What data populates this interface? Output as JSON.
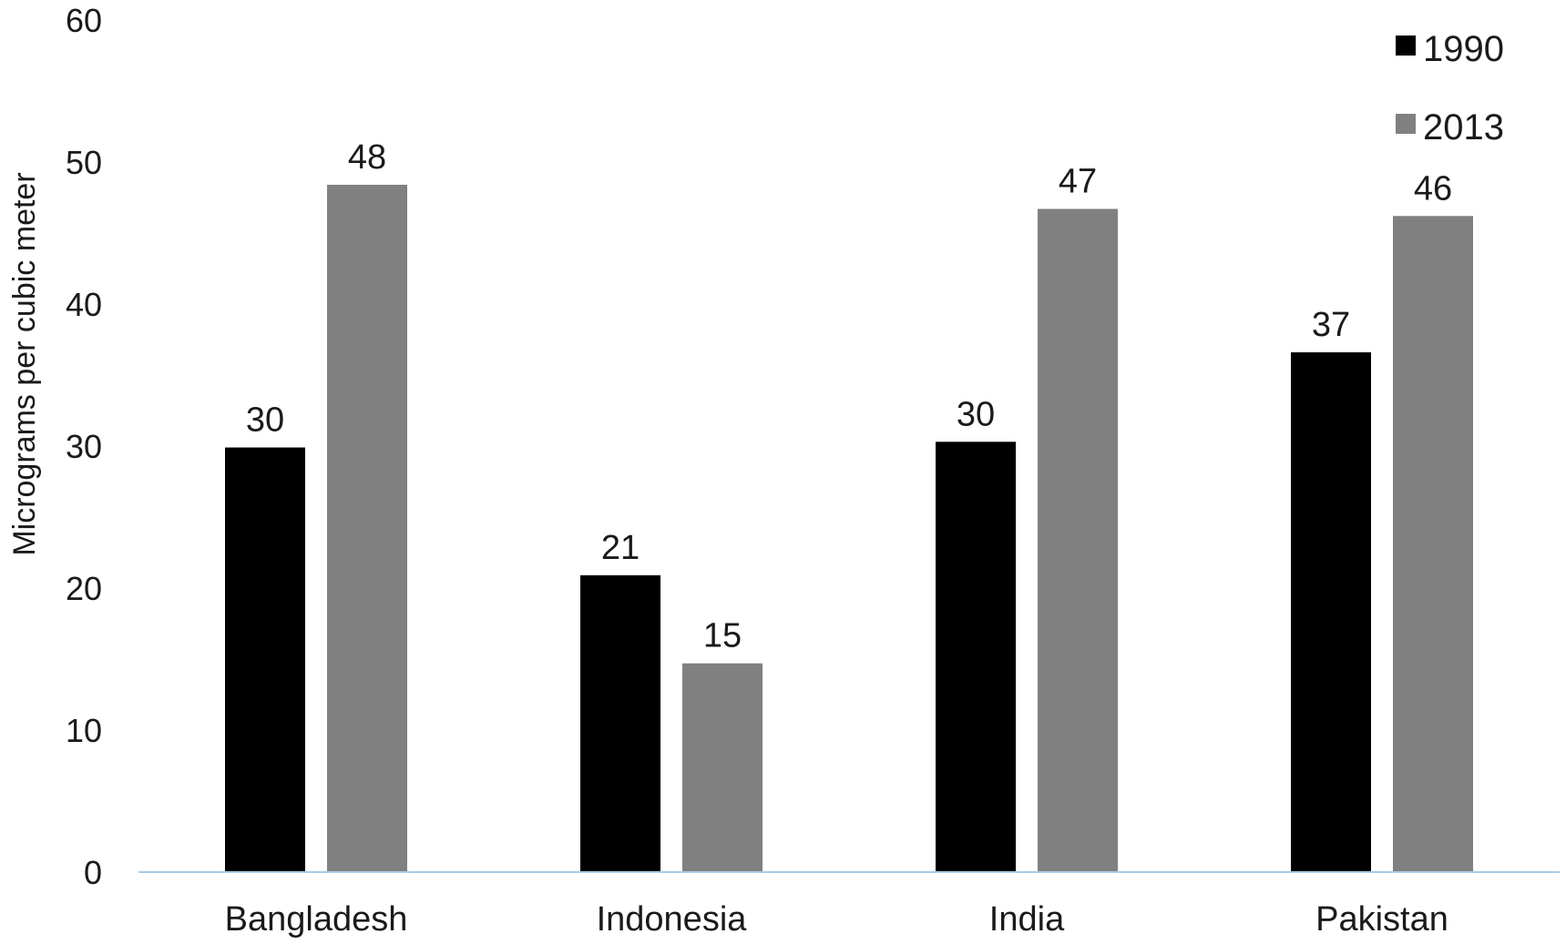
{
  "chart_data": {
    "type": "bar",
    "title": "",
    "xlabel": "",
    "ylabel": "Micrograms per cubic meter",
    "ylim": [
      0,
      60
    ],
    "yticks": [
      0,
      10,
      20,
      30,
      40,
      50,
      60
    ],
    "grid": false,
    "legend_position": "top-right",
    "categories": [
      "Bangladesh",
      "Indonesia",
      "India",
      "Pakistan"
    ],
    "series": [
      {
        "name": "1990",
        "color": "#000000",
        "values": [
          29.9,
          20.9,
          30.3,
          36.6
        ],
        "labels": [
          "30",
          "21",
          "30",
          "37"
        ]
      },
      {
        "name": "2013",
        "color": "#808080",
        "values": [
          48.4,
          14.7,
          46.7,
          46.2
        ],
        "labels": [
          "48",
          "15",
          "47",
          "46"
        ]
      }
    ],
    "axis_color": "#a9cbe8"
  }
}
